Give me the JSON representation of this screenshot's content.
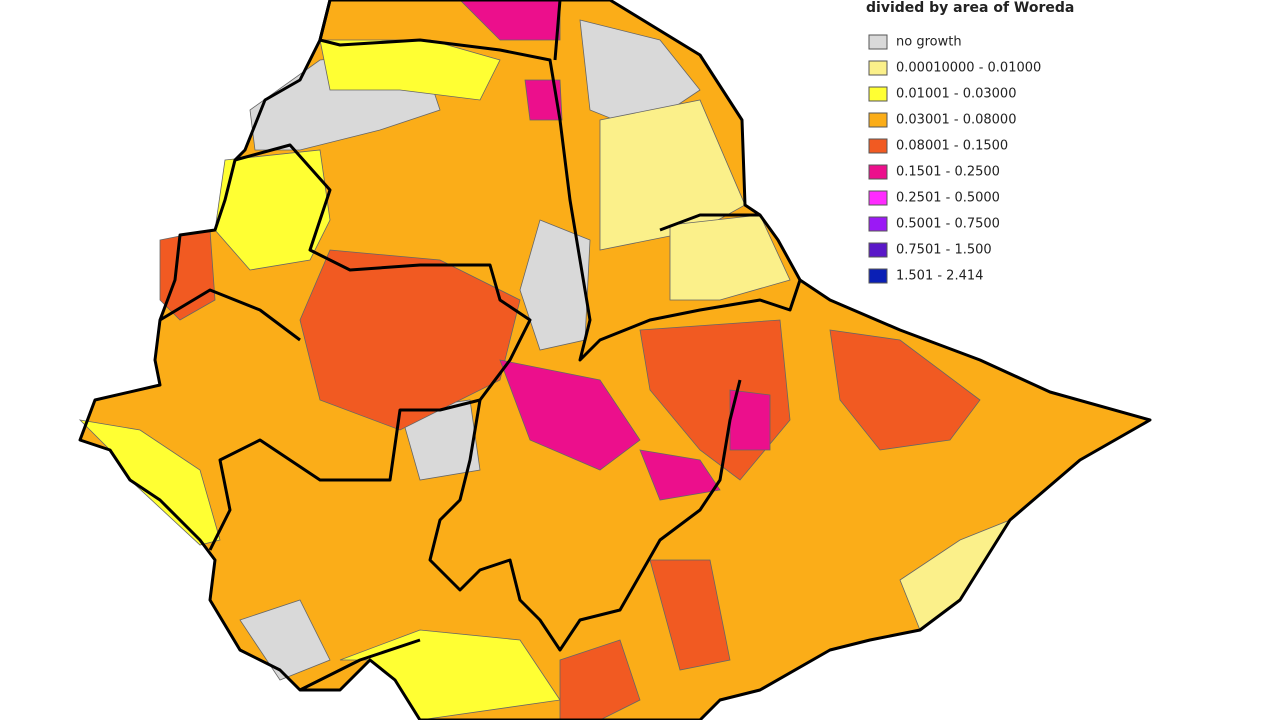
{
  "legend": {
    "title": "divided by area of Woreda",
    "items": [
      {
        "label": "no growth",
        "color": "#d9d9d9"
      },
      {
        "label": "0.00010000 - 0.01000",
        "color": "#fbf08a"
      },
      {
        "label": "0.01001 - 0.03000",
        "color": "#ffff33"
      },
      {
        "label": "0.03001 - 0.08000",
        "color": "#fbad18"
      },
      {
        "label": "0.08001 - 0.1500",
        "color": "#f15a22"
      },
      {
        "label": "0.1501 - 0.2500",
        "color": "#ec0f8c"
      },
      {
        "label": "0.2501 - 0.5000",
        "color": "#ff2bff"
      },
      {
        "label": "0.5001 - 0.7500",
        "color": "#9b19f5"
      },
      {
        "label": "0.7501 - 1.500",
        "color": "#5a18c8"
      },
      {
        "label": "1.501 - 2.414",
        "color": "#0a1fb5"
      }
    ]
  }
}
